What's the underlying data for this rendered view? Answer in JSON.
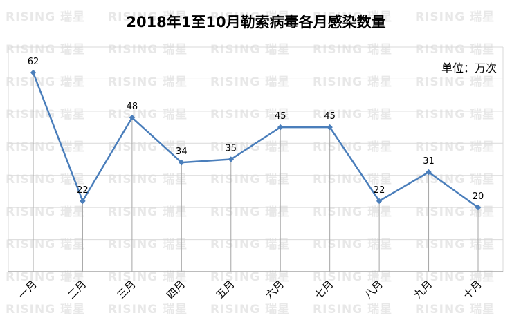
{
  "chart_data": {
    "type": "line",
    "title": "2018年1至10月勒索病毒各月感染数量",
    "unit_label": "单位：万次",
    "categories": [
      "一月",
      "二月",
      "三月",
      "四月",
      "五月",
      "六月",
      "七月",
      "八月",
      "九月",
      "十月"
    ],
    "series": [
      {
        "name": "感染数量",
        "values": [
          62,
          22,
          48,
          34,
          35,
          45,
          45,
          22,
          31,
          20
        ],
        "color": "#4a7ebb"
      }
    ],
    "xlabel": "",
    "ylabel": "",
    "ylim": [
      0,
      70
    ],
    "grid": true,
    "y_tick_labels_visible": false,
    "legend": "none",
    "watermark": "RISING 瑞星"
  },
  "colors": {
    "line": "#4a7ebb",
    "grid": "#d9d9d9",
    "axis": "#a6a6a6",
    "droplines": "#a6a6a6"
  }
}
